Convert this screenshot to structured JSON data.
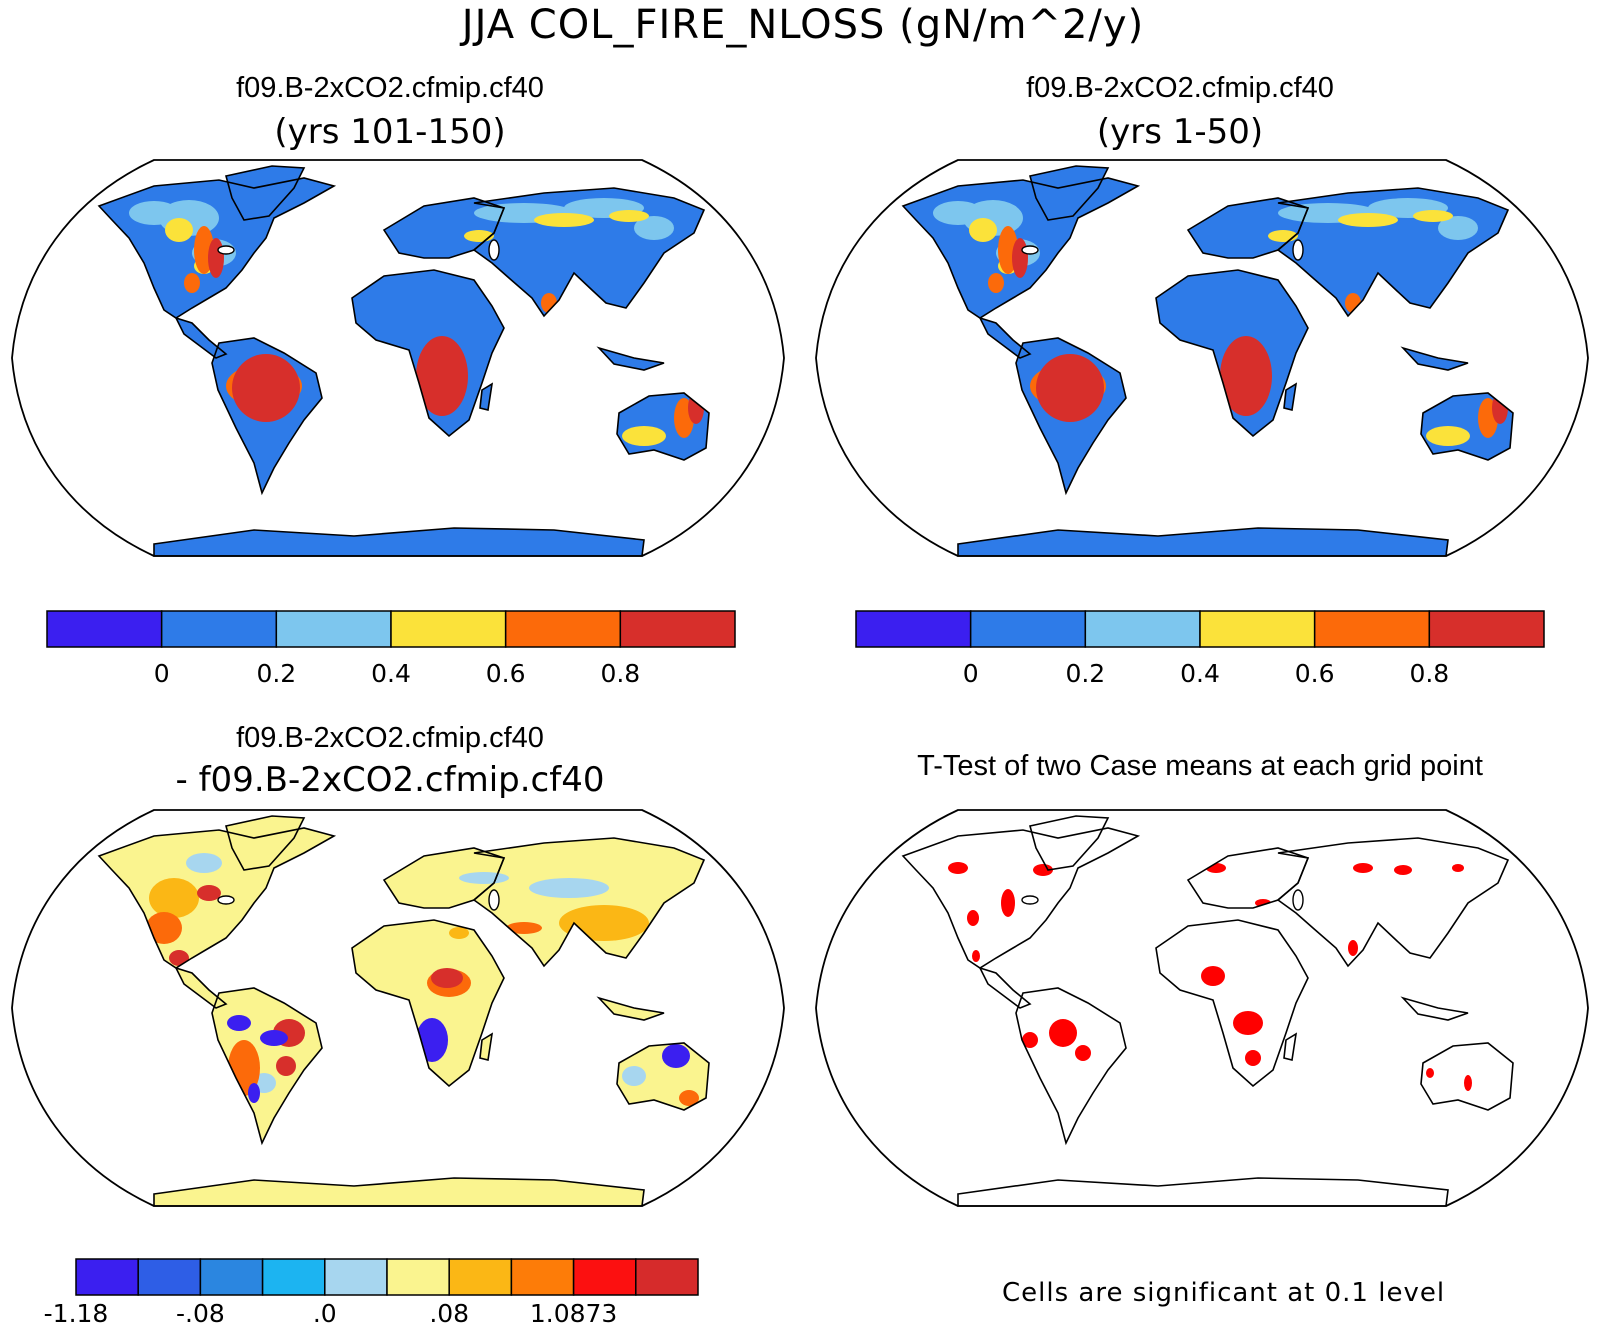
{
  "main_title": "JJA COL_FIRE_NLOSS (gN/m^2/y)",
  "panels": {
    "top_left": {
      "title": "f09.B-2xCO2.cfmip.cf40",
      "subtitle": "(yrs 101-150)"
    },
    "top_right": {
      "title": "f09.B-2xCO2.cfmip.cf40",
      "subtitle": "(yrs 1-50)"
    },
    "bottom_left": {
      "title": "f09.B-2xCO2.cfmip.cf40",
      "subtitle": "- f09.B-2xCO2.cfmip.cf40"
    },
    "bottom_right": {
      "title": "T-Test of two Case means at each grid point"
    }
  },
  "colorbar_top": {
    "colors": [
      "#3b1ff0",
      "#2e7be8",
      "#7dc6ee",
      "#fbe23a",
      "#fc6a0a",
      "#d72f2b"
    ],
    "labels": [
      "0",
      "0.2",
      "0.4",
      "0.6",
      "0.8"
    ]
  },
  "colorbar_diff": {
    "colors": [
      "#3b1ff0",
      "#2e5ee6",
      "#2b86e0",
      "#1cb4f1",
      "#a7d6ef",
      "#faf48f",
      "#fbb715",
      "#fd7c08",
      "#fc1010",
      "#d62b2b"
    ],
    "labels": [
      "-1.18",
      "-.08",
      ".0",
      ".08",
      "1.0873"
    ]
  },
  "footnote": "Cells are significant at 0.1 level",
  "map_colors": {
    "ocean": "#ffffff",
    "low": "#2e7be8",
    "mid": "#7dc6ee",
    "yellow": "#fbe23a",
    "orange": "#fc6a0a",
    "red": "#d72f2b",
    "diff_base": "#faf48f",
    "diff_blue": "#3b1ff0",
    "signif": "#ff0000"
  }
}
